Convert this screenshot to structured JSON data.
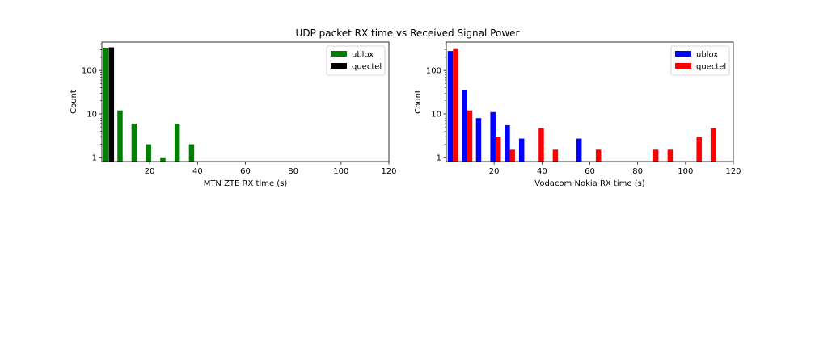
{
  "figure_title": "UDP packet RX time vs Received Signal Power",
  "chart_data": [
    {
      "type": "bar",
      "subplot": "left",
      "xlabel": "MTN ZTE RX time (s)",
      "ylabel": "Count",
      "xlim": [
        0,
        120
      ],
      "ylim": [
        0.8,
        450
      ],
      "yscale": "log",
      "xticks": [
        "20",
        "40",
        "60",
        "80",
        "100",
        "120"
      ],
      "yticks": [
        "1",
        "10",
        "100"
      ],
      "legend_position": "top-right",
      "bar_width": 2.2,
      "series": [
        {
          "name": "ublox",
          "color": "#008000",
          "points": [
            {
              "x": 1.7,
              "y": 320
            },
            {
              "x": 7.6,
              "y": 12
            },
            {
              "x": 13.5,
              "y": 6
            },
            {
              "x": 19.5,
              "y": 2
            },
            {
              "x": 25.5,
              "y": 1
            },
            {
              "x": 31.5,
              "y": 6
            },
            {
              "x": 37.5,
              "y": 2
            }
          ]
        },
        {
          "name": "quectel",
          "color": "#000000",
          "points": [
            {
              "x": 4.0,
              "y": 340
            }
          ]
        }
      ]
    },
    {
      "type": "bar",
      "subplot": "right",
      "xlabel": "Vodacom Nokia RX time (s)",
      "ylabel": "Count",
      "xlim": [
        0,
        120
      ],
      "ylim": [
        0.8,
        450
      ],
      "yscale": "log",
      "xticks": [
        "20",
        "40",
        "60",
        "80",
        "100",
        "120"
      ],
      "yticks": [
        "1",
        "10",
        "100"
      ],
      "legend_position": "top-right",
      "bar_width": 2.2,
      "series": [
        {
          "name": "ublox",
          "color": "#0000ff",
          "points": [
            {
              "x": 1.7,
              "y": 280
            },
            {
              "x": 7.6,
              "y": 35
            },
            {
              "x": 13.5,
              "y": 8
            },
            {
              "x": 19.5,
              "y": 11
            },
            {
              "x": 25.5,
              "y": 5.5
            },
            {
              "x": 31.5,
              "y": 2.7
            },
            {
              "x": 55.5,
              "y": 2.7
            }
          ]
        },
        {
          "name": "quectel",
          "color": "#ff0000",
          "points": [
            {
              "x": 3.9,
              "y": 310
            },
            {
              "x": 9.8,
              "y": 12
            },
            {
              "x": 21.7,
              "y": 3
            },
            {
              "x": 27.6,
              "y": 1.5
            },
            {
              "x": 39.7,
              "y": 4.7
            },
            {
              "x": 45.6,
              "y": 1.5
            },
            {
              "x": 63.6,
              "y": 1.5
            },
            {
              "x": 87.6,
              "y": 1.5
            },
            {
              "x": 93.6,
              "y": 1.5
            },
            {
              "x": 105.7,
              "y": 3
            },
            {
              "x": 111.6,
              "y": 4.7
            }
          ]
        }
      ]
    }
  ]
}
